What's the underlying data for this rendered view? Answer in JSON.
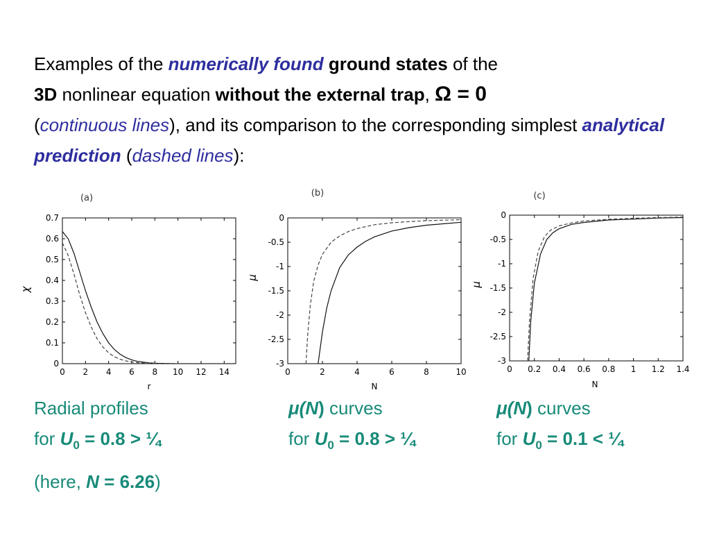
{
  "heading": {
    "p1": "Examples of the ",
    "p2": "numerically found",
    "p3": " ",
    "p4": "ground states",
    "p5": " of the ",
    "p6": "3D",
    "p7": " nonlinear equation ",
    "p8": "without the external trap",
    "p9": ", ",
    "p10": "Ω = 0",
    "p11": "(",
    "p12": "continuous lines",
    "p13": "), and its comparison to the corresponding simplest ",
    "p14": "analytical prediction",
    "p15": " (",
    "p16": "dashed lines",
    "p17": "):"
  },
  "captions": {
    "a": {
      "l1": "Radial profiles",
      "l2_for": "for ",
      "l2_u": "U",
      "l2_sub": "0",
      "l2_val": " = 0.8 > ¼",
      "l3_open": "(here, ",
      "l3_n": "N",
      "l3_val": " = 6.26",
      "l3_close": ")"
    },
    "b": {
      "mu": "μ(",
      "n": "N",
      "close": ")",
      "curves": " curves",
      "for": "for ",
      "u": "U",
      "sub": "0",
      "val": " = 0.8 > ¼"
    },
    "c": {
      "mu": "μ(",
      "n": "N",
      "close": ")",
      "curves": " curves",
      "for": "for ",
      "u": "U",
      "sub": "0",
      "val": " = 0.1 < ¼"
    }
  },
  "chart_data": [
    {
      "panel": "(a)",
      "type": "line",
      "xlabel": "r",
      "ylabel": "χ",
      "xlim": [
        0,
        15
      ],
      "ylim": [
        0,
        0.7
      ],
      "xticks": [
        0,
        2,
        4,
        6,
        8,
        10,
        12,
        14
      ],
      "yticks": [
        0,
        0.1,
        0.2,
        0.3,
        0.4,
        0.5,
        0.6,
        0.7
      ],
      "xtick_labels": [
        "0",
        "2",
        "4",
        "6",
        "8",
        "10",
        "12",
        "14"
      ],
      "ytick_labels": [
        "0",
        "0.1",
        "0.2",
        "0.3",
        "0.4",
        "0.5",
        "0.6",
        "0.7"
      ],
      "series": [
        {
          "style": "solid",
          "x": [
            0,
            0.5,
            1,
            1.5,
            2,
            2.5,
            3,
            3.5,
            4,
            4.5,
            5,
            5.5,
            6,
            6.5,
            7,
            7.5,
            8,
            9,
            10,
            12,
            15
          ],
          "y": [
            0.635,
            0.6,
            0.53,
            0.44,
            0.35,
            0.27,
            0.2,
            0.145,
            0.1,
            0.068,
            0.045,
            0.029,
            0.018,
            0.011,
            0.007,
            0.004,
            0.002,
            0.001,
            0,
            0,
            0
          ]
        },
        {
          "style": "dashed",
          "x": [
            0,
            0.5,
            1,
            1.5,
            2,
            2.5,
            3,
            3.5,
            4,
            4.5,
            5,
            5.5,
            6,
            6.5,
            7,
            7.5,
            8,
            9,
            10,
            12,
            15
          ],
          "y": [
            0.58,
            0.52,
            0.43,
            0.33,
            0.245,
            0.175,
            0.12,
            0.08,
            0.052,
            0.033,
            0.021,
            0.013,
            0.008,
            0.005,
            0.003,
            0.002,
            0.001,
            0,
            0,
            0,
            0
          ]
        }
      ]
    },
    {
      "panel": "(b)",
      "type": "line",
      "xlabel": "N",
      "ylabel": "μ",
      "xlim": [
        0,
        10
      ],
      "ylim": [
        -3,
        0
      ],
      "xticks": [
        0,
        2,
        4,
        6,
        8,
        10
      ],
      "yticks": [
        0,
        -0.5,
        -1,
        -1.5,
        -2,
        -2.5,
        -3
      ],
      "xtick_labels": [
        "0",
        "2",
        "4",
        "6",
        "8",
        "10"
      ],
      "ytick_labels": [
        "0",
        "-0.5",
        "-1",
        "-1.5",
        "-2",
        "-2.5",
        "-3"
      ],
      "series": [
        {
          "style": "solid",
          "x": [
            1.75,
            2,
            2.25,
            2.5,
            3,
            3.5,
            4,
            4.5,
            5,
            6,
            7,
            8,
            9,
            10
          ],
          "y": [
            -3,
            -2.35,
            -1.85,
            -1.5,
            -1.02,
            -0.76,
            -0.6,
            -0.48,
            -0.39,
            -0.27,
            -0.2,
            -0.15,
            -0.12,
            -0.09
          ]
        },
        {
          "style": "dashed",
          "x": [
            1.05,
            1.15,
            1.3,
            1.5,
            1.75,
            2,
            2.5,
            3,
            3.5,
            4,
            5,
            6,
            7,
            8,
            10
          ],
          "y": [
            -3,
            -2.4,
            -1.8,
            -1.3,
            -0.97,
            -0.75,
            -0.5,
            -0.37,
            -0.28,
            -0.22,
            -0.14,
            -0.1,
            -0.075,
            -0.057,
            -0.036
          ]
        }
      ]
    },
    {
      "panel": "(c)",
      "type": "line",
      "xlabel": "N",
      "ylabel": "μ",
      "xlim": [
        0,
        1.4
      ],
      "ylim": [
        -3,
        0
      ],
      "xticks": [
        0,
        0.2,
        0.4,
        0.6,
        0.8,
        1,
        1.2,
        1.4
      ],
      "yticks": [
        0,
        -0.5,
        -1,
        -1.5,
        -2,
        -2.5,
        -3
      ],
      "xtick_labels": [
        "0",
        "0.2",
        "0.4",
        "0.6",
        "0.8",
        "1",
        "1.2",
        "1.4"
      ],
      "ytick_labels": [
        "0",
        "-0.5",
        "-1",
        "-1.5",
        "-2",
        "-2.5",
        "-3"
      ],
      "series": [
        {
          "style": "solid",
          "x": [
            0.155,
            0.17,
            0.2,
            0.25,
            0.3,
            0.35,
            0.4,
            0.5,
            0.6,
            0.8,
            1,
            1.2,
            1.4
          ],
          "y": [
            -3,
            -2.2,
            -1.4,
            -0.8,
            -0.5,
            -0.36,
            -0.28,
            -0.19,
            -0.15,
            -0.1,
            -0.08,
            -0.06,
            -0.05
          ]
        },
        {
          "style": "dashed",
          "x": [
            0.145,
            0.16,
            0.19,
            0.23,
            0.28,
            0.33,
            0.4,
            0.5,
            0.6,
            0.8,
            1,
            1.2,
            1.4
          ],
          "y": [
            -3,
            -2.2,
            -1.3,
            -0.75,
            -0.45,
            -0.31,
            -0.22,
            -0.16,
            -0.12,
            -0.085,
            -0.065,
            -0.05,
            -0.04
          ]
        }
      ]
    }
  ]
}
